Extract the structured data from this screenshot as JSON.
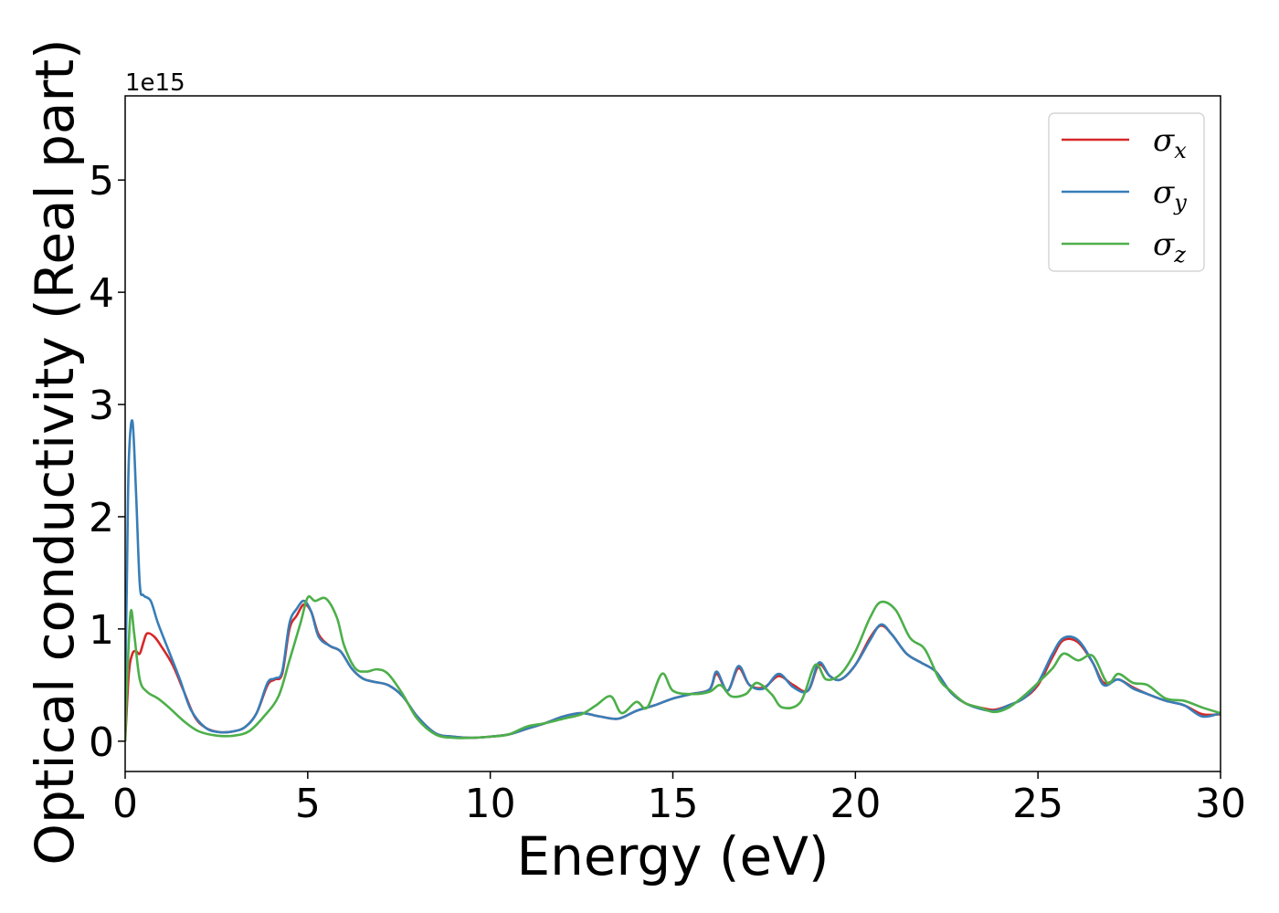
{
  "chart_data": {
    "type": "line",
    "xlabel": "Energy (eV)",
    "ylabel": "Optical conductivity (Real part)",
    "y_offset_label": "1e15",
    "xlim": [
      0,
      30
    ],
    "ylim": [
      -0.27,
      5.75
    ],
    "x_ticks": [
      0,
      5,
      10,
      15,
      20,
      25,
      30
    ],
    "x_tick_labels": [
      "0",
      "5",
      "10",
      "15",
      "20",
      "25",
      "30"
    ],
    "y_ticks": [
      0,
      1,
      2,
      3,
      4,
      5
    ],
    "y_tick_labels": [
      "0",
      "1",
      "2",
      "3",
      "4",
      "5"
    ],
    "grid": false,
    "legend_position": "top-right",
    "series": [
      {
        "name": "σx",
        "symbol": "σ",
        "subscript": "x",
        "color": "#d62728",
        "points": [
          [
            0,
            0
          ],
          [
            0.1,
            0.6
          ],
          [
            0.2,
            0.78
          ],
          [
            0.3,
            0.8
          ],
          [
            0.4,
            0.78
          ],
          [
            0.5,
            0.88
          ],
          [
            0.6,
            0.96
          ],
          [
            0.8,
            0.93
          ],
          [
            1.0,
            0.84
          ],
          [
            1.3,
            0.68
          ],
          [
            1.6,
            0.45
          ],
          [
            1.9,
            0.22
          ],
          [
            2.2,
            0.12
          ],
          [
            2.6,
            0.08
          ],
          [
            3.0,
            0.09
          ],
          [
            3.3,
            0.13
          ],
          [
            3.6,
            0.25
          ],
          [
            3.9,
            0.5
          ],
          [
            4.1,
            0.55
          ],
          [
            4.3,
            0.6
          ],
          [
            4.5,
            1.0
          ],
          [
            4.7,
            1.12
          ],
          [
            4.9,
            1.22
          ],
          [
            5.1,
            1.15
          ],
          [
            5.3,
            0.95
          ],
          [
            5.6,
            0.85
          ],
          [
            5.9,
            0.8
          ],
          [
            6.2,
            0.65
          ],
          [
            6.5,
            0.56
          ],
          [
            6.8,
            0.53
          ],
          [
            7.2,
            0.5
          ],
          [
            7.6,
            0.4
          ],
          [
            8.0,
            0.22
          ],
          [
            8.5,
            0.07
          ],
          [
            9.0,
            0.04
          ],
          [
            9.5,
            0.03
          ],
          [
            10.0,
            0.04
          ],
          [
            10.5,
            0.06
          ],
          [
            11.0,
            0.11
          ],
          [
            11.5,
            0.16
          ],
          [
            12.0,
            0.22
          ],
          [
            12.5,
            0.25
          ],
          [
            13.0,
            0.22
          ],
          [
            13.5,
            0.2
          ],
          [
            14.0,
            0.27
          ],
          [
            14.5,
            0.32
          ],
          [
            15.0,
            0.38
          ],
          [
            15.5,
            0.42
          ],
          [
            16.0,
            0.46
          ],
          [
            16.2,
            0.6
          ],
          [
            16.5,
            0.45
          ],
          [
            16.8,
            0.65
          ],
          [
            17.1,
            0.5
          ],
          [
            17.5,
            0.48
          ],
          [
            17.9,
            0.58
          ],
          [
            18.3,
            0.5
          ],
          [
            18.7,
            0.45
          ],
          [
            19.0,
            0.68
          ],
          [
            19.3,
            0.58
          ],
          [
            19.6,
            0.55
          ],
          [
            20.0,
            0.68
          ],
          [
            20.4,
            0.92
          ],
          [
            20.7,
            1.03
          ],
          [
            21.0,
            0.95
          ],
          [
            21.4,
            0.78
          ],
          [
            21.8,
            0.7
          ],
          [
            22.2,
            0.62
          ],
          [
            22.6,
            0.44
          ],
          [
            23.0,
            0.34
          ],
          [
            23.4,
            0.3
          ],
          [
            23.8,
            0.28
          ],
          [
            24.2,
            0.32
          ],
          [
            24.6,
            0.38
          ],
          [
            25.0,
            0.5
          ],
          [
            25.4,
            0.75
          ],
          [
            25.7,
            0.9
          ],
          [
            26.1,
            0.88
          ],
          [
            26.5,
            0.7
          ],
          [
            26.8,
            0.52
          ],
          [
            27.2,
            0.55
          ],
          [
            27.6,
            0.48
          ],
          [
            28.0,
            0.42
          ],
          [
            28.5,
            0.36
          ],
          [
            29.0,
            0.32
          ],
          [
            29.5,
            0.24
          ],
          [
            30.0,
            0.24
          ]
        ]
      },
      {
        "name": "σy",
        "symbol": "σ",
        "subscript": "y",
        "color": "#377eb8",
        "points": [
          [
            0,
            0.4
          ],
          [
            0.05,
            1.5
          ],
          [
            0.1,
            2.5
          ],
          [
            0.2,
            2.85
          ],
          [
            0.3,
            2.2
          ],
          [
            0.4,
            1.4
          ],
          [
            0.5,
            1.3
          ],
          [
            0.7,
            1.25
          ],
          [
            0.9,
            1.05
          ],
          [
            1.2,
            0.8
          ],
          [
            1.5,
            0.55
          ],
          [
            1.8,
            0.28
          ],
          [
            2.2,
            0.12
          ],
          [
            2.6,
            0.08
          ],
          [
            3.0,
            0.09
          ],
          [
            3.3,
            0.13
          ],
          [
            3.6,
            0.25
          ],
          [
            3.9,
            0.52
          ],
          [
            4.1,
            0.56
          ],
          [
            4.3,
            0.62
          ],
          [
            4.5,
            1.05
          ],
          [
            4.7,
            1.18
          ],
          [
            4.9,
            1.25
          ],
          [
            5.1,
            1.15
          ],
          [
            5.3,
            0.93
          ],
          [
            5.6,
            0.85
          ],
          [
            5.9,
            0.8
          ],
          [
            6.2,
            0.65
          ],
          [
            6.5,
            0.56
          ],
          [
            6.8,
            0.53
          ],
          [
            7.2,
            0.5
          ],
          [
            7.6,
            0.4
          ],
          [
            8.0,
            0.22
          ],
          [
            8.5,
            0.07
          ],
          [
            9.0,
            0.04
          ],
          [
            9.5,
            0.03
          ],
          [
            10.0,
            0.04
          ],
          [
            10.5,
            0.06
          ],
          [
            11.0,
            0.11
          ],
          [
            11.5,
            0.16
          ],
          [
            12.0,
            0.22
          ],
          [
            12.5,
            0.25
          ],
          [
            13.0,
            0.22
          ],
          [
            13.5,
            0.2
          ],
          [
            14.0,
            0.27
          ],
          [
            14.5,
            0.32
          ],
          [
            15.0,
            0.38
          ],
          [
            15.5,
            0.42
          ],
          [
            16.0,
            0.46
          ],
          [
            16.2,
            0.62
          ],
          [
            16.5,
            0.45
          ],
          [
            16.8,
            0.67
          ],
          [
            17.1,
            0.5
          ],
          [
            17.5,
            0.47
          ],
          [
            17.9,
            0.6
          ],
          [
            18.3,
            0.48
          ],
          [
            18.7,
            0.45
          ],
          [
            19.0,
            0.7
          ],
          [
            19.3,
            0.58
          ],
          [
            19.6,
            0.55
          ],
          [
            20.0,
            0.68
          ],
          [
            20.4,
            0.9
          ],
          [
            20.7,
            1.04
          ],
          [
            21.0,
            0.95
          ],
          [
            21.4,
            0.78
          ],
          [
            21.8,
            0.7
          ],
          [
            22.2,
            0.62
          ],
          [
            22.6,
            0.44
          ],
          [
            23.0,
            0.34
          ],
          [
            23.4,
            0.29
          ],
          [
            23.8,
            0.27
          ],
          [
            24.2,
            0.32
          ],
          [
            24.6,
            0.38
          ],
          [
            25.0,
            0.52
          ],
          [
            25.4,
            0.78
          ],
          [
            25.7,
            0.92
          ],
          [
            26.1,
            0.9
          ],
          [
            26.5,
            0.7
          ],
          [
            26.8,
            0.5
          ],
          [
            27.2,
            0.55
          ],
          [
            27.6,
            0.47
          ],
          [
            28.0,
            0.42
          ],
          [
            28.5,
            0.36
          ],
          [
            29.0,
            0.32
          ],
          [
            29.5,
            0.22
          ],
          [
            30.0,
            0.25
          ]
        ]
      },
      {
        "name": "σz",
        "symbol": "σ",
        "subscript": "z",
        "color": "#4daf4a",
        "points": [
          [
            0,
            0
          ],
          [
            0.05,
            0.5
          ],
          [
            0.15,
            1.15
          ],
          [
            0.25,
            0.95
          ],
          [
            0.4,
            0.55
          ],
          [
            0.6,
            0.44
          ],
          [
            0.9,
            0.38
          ],
          [
            1.2,
            0.3
          ],
          [
            1.6,
            0.18
          ],
          [
            2.0,
            0.09
          ],
          [
            2.5,
            0.05
          ],
          [
            3.0,
            0.05
          ],
          [
            3.4,
            0.09
          ],
          [
            3.8,
            0.22
          ],
          [
            4.2,
            0.4
          ],
          [
            4.5,
            0.72
          ],
          [
            4.8,
            1.05
          ],
          [
            5.0,
            1.28
          ],
          [
            5.2,
            1.25
          ],
          [
            5.5,
            1.27
          ],
          [
            5.8,
            1.1
          ],
          [
            6.0,
            0.85
          ],
          [
            6.3,
            0.65
          ],
          [
            6.6,
            0.62
          ],
          [
            6.9,
            0.64
          ],
          [
            7.2,
            0.6
          ],
          [
            7.6,
            0.42
          ],
          [
            8.0,
            0.2
          ],
          [
            8.5,
            0.06
          ],
          [
            9.0,
            0.03
          ],
          [
            9.5,
            0.03
          ],
          [
            10.0,
            0.04
          ],
          [
            10.5,
            0.06
          ],
          [
            11.0,
            0.13
          ],
          [
            11.5,
            0.16
          ],
          [
            12.0,
            0.2
          ],
          [
            12.5,
            0.24
          ],
          [
            12.9,
            0.32
          ],
          [
            13.3,
            0.4
          ],
          [
            13.6,
            0.25
          ],
          [
            14.0,
            0.35
          ],
          [
            14.3,
            0.3
          ],
          [
            14.7,
            0.6
          ],
          [
            15.0,
            0.45
          ],
          [
            15.5,
            0.42
          ],
          [
            16.0,
            0.44
          ],
          [
            16.3,
            0.5
          ],
          [
            16.6,
            0.4
          ],
          [
            17.0,
            0.42
          ],
          [
            17.3,
            0.52
          ],
          [
            17.7,
            0.42
          ],
          [
            18.0,
            0.3
          ],
          [
            18.5,
            0.35
          ],
          [
            18.9,
            0.68
          ],
          [
            19.2,
            0.55
          ],
          [
            19.6,
            0.6
          ],
          [
            20.0,
            0.8
          ],
          [
            20.4,
            1.1
          ],
          [
            20.7,
            1.24
          ],
          [
            21.1,
            1.17
          ],
          [
            21.5,
            0.92
          ],
          [
            21.9,
            0.82
          ],
          [
            22.3,
            0.55
          ],
          [
            22.6,
            0.45
          ],
          [
            23.0,
            0.34
          ],
          [
            23.4,
            0.3
          ],
          [
            23.8,
            0.26
          ],
          [
            24.2,
            0.3
          ],
          [
            24.6,
            0.4
          ],
          [
            25.0,
            0.52
          ],
          [
            25.4,
            0.65
          ],
          [
            25.7,
            0.78
          ],
          [
            26.1,
            0.72
          ],
          [
            26.5,
            0.76
          ],
          [
            26.9,
            0.52
          ],
          [
            27.2,
            0.6
          ],
          [
            27.6,
            0.52
          ],
          [
            28.0,
            0.5
          ],
          [
            28.5,
            0.38
          ],
          [
            29.0,
            0.36
          ],
          [
            29.5,
            0.3
          ],
          [
            30.0,
            0.25
          ]
        ]
      }
    ]
  }
}
